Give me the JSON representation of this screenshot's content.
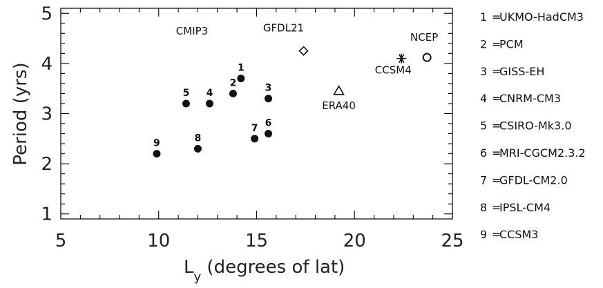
{
  "chart_data": {
    "type": "scatter",
    "xlabel_main": "L",
    "xlabel_sub": "y",
    "xlabel_rest": " (degrees of lat)",
    "ylabel": "Period (yrs)",
    "xlim": [
      5,
      25
    ],
    "ylim": [
      0.9,
      5.1
    ],
    "x_ticks": [
      5,
      10,
      15,
      20,
      25
    ],
    "x_tick_labels": [
      "5",
      "10",
      "15",
      "20",
      "25"
    ],
    "y_ticks": [
      1,
      2,
      3,
      4,
      5
    ],
    "y_tick_labels": [
      "1",
      "2",
      "3",
      "4",
      "5"
    ],
    "models_title": "CMIP3",
    "models": [
      {
        "id": "1",
        "x": 14.2,
        "y": 3.7
      },
      {
        "id": "2",
        "x": 13.8,
        "y": 3.4
      },
      {
        "id": "3",
        "x": 15.6,
        "y": 3.3
      },
      {
        "id": "4",
        "x": 12.6,
        "y": 3.2
      },
      {
        "id": "5",
        "x": 11.4,
        "y": 3.2
      },
      {
        "id": "6",
        "x": 15.6,
        "y": 2.6
      },
      {
        "id": "7",
        "x": 14.9,
        "y": 2.5
      },
      {
        "id": "8",
        "x": 12.0,
        "y": 2.3
      },
      {
        "id": "9",
        "x": 9.9,
        "y": 2.2
      }
    ],
    "specials": [
      {
        "name": "GFDL21",
        "marker": "diamond",
        "x": 17.4,
        "y": 4.25
      },
      {
        "name": "ERA40",
        "marker": "triangle",
        "x": 19.2,
        "y": 3.45
      },
      {
        "name": "CCSM4",
        "marker": "asterisk",
        "x": 22.4,
        "y": 4.1
      },
      {
        "name": "NCEP",
        "marker": "circle",
        "x": 23.7,
        "y": 4.12
      }
    ],
    "legend": [
      {
        "key": "1",
        "sep": "=",
        "name": "UKMO-HadCM3"
      },
      {
        "key": "2",
        "sep": "=",
        "name": "PCM"
      },
      {
        "key": "3",
        "sep": "=",
        "name": "GISS-EH"
      },
      {
        "key": "4",
        "sep": "=",
        "name": "CNRM-CM3"
      },
      {
        "key": "5",
        "sep": "=",
        "name": "CSIRO-Mk3.0"
      },
      {
        "key": "6",
        "sep": "=",
        "name": "MRI-CGCM2.3.2"
      },
      {
        "key": "7",
        "sep": "=",
        "name": "GFDL-CM2.0"
      },
      {
        "key": "8",
        "sep": "=",
        "name": "IPSL-CM4"
      },
      {
        "key": "9",
        "sep": "=",
        "name": "CCSM3"
      }
    ],
    "legend_placement": "right",
    "grid": false
  }
}
